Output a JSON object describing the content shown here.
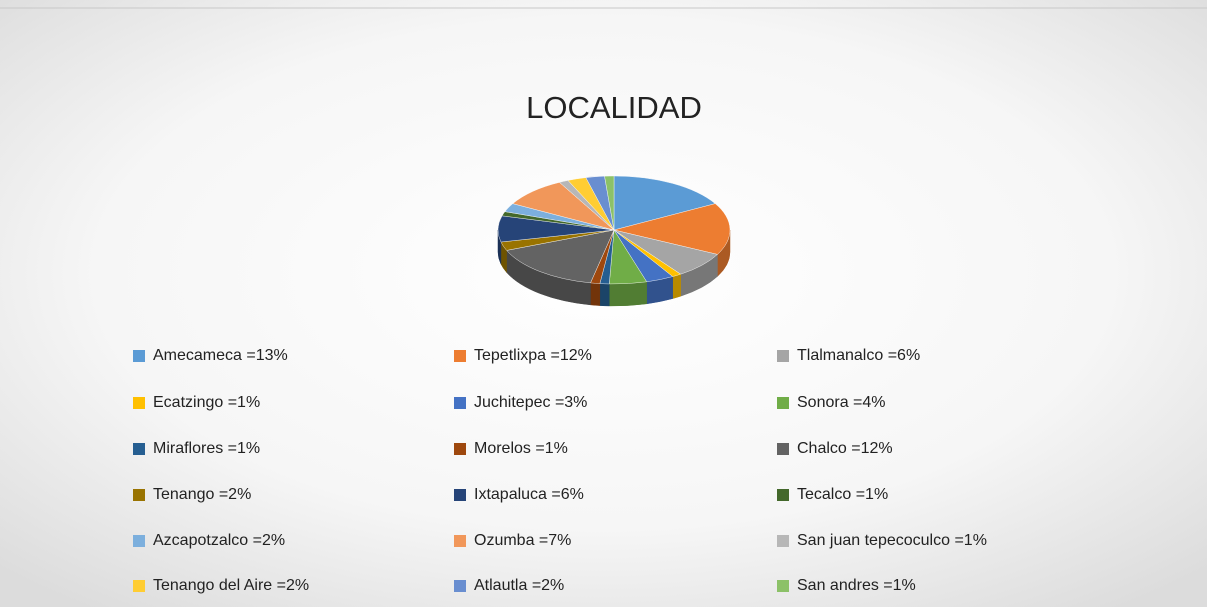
{
  "chart_data": {
    "type": "pie3d",
    "title": "LOCALIDAD",
    "categories": [
      "Amecameca =13%",
      "Tepetlixpa =12%",
      "Tlalmanalco =6%",
      "Ecatzingo =1%",
      "Juchitepec =3%",
      "Sonora =4%",
      "Miraflores =1%",
      "Morelos =1%",
      "Chalco =12%",
      "Tenango =2%",
      "Ixtapaluca =6%",
      "Tecalco =1%",
      "Azcapotzalco =2%",
      "Ozumba  =7%",
      "San juan tepecoculco =1%",
      "Tenango del Aire =2%",
      "Atlautla =2%",
      "San andres =1%"
    ],
    "values": [
      13,
      12,
      6,
      1,
      3,
      4,
      1,
      1,
      12,
      2,
      6,
      1,
      2,
      7,
      1,
      2,
      2,
      1
    ],
    "colors": [
      "#5b9bd5",
      "#ed7d31",
      "#a5a5a5",
      "#ffc000",
      "#4472c4",
      "#70ad47",
      "#255e91",
      "#9e480e",
      "#636363",
      "#997300",
      "#264478",
      "#43682b",
      "#7cafdd",
      "#f1975a",
      "#b7b7b7",
      "#ffcd33",
      "#698ed0",
      "#8cc168"
    ],
    "legend": "bottom"
  }
}
